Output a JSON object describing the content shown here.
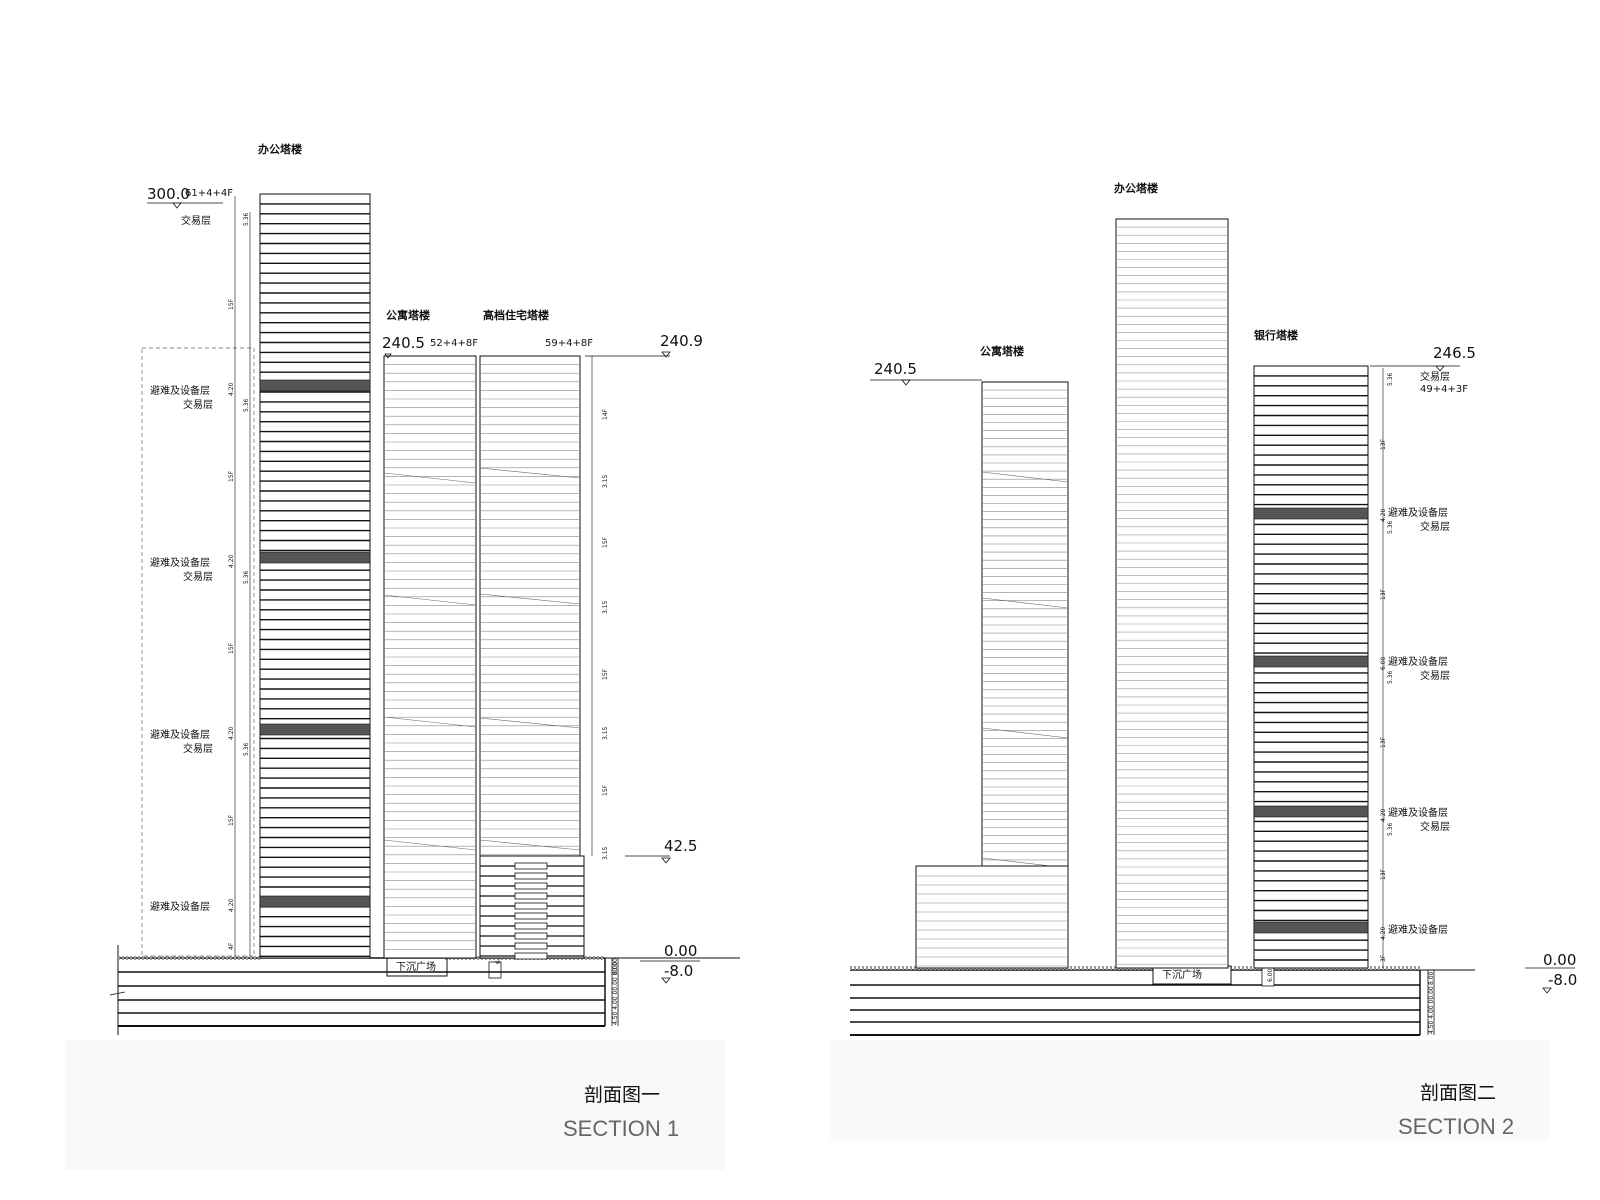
{
  "section1": {
    "office": {
      "label": "办公塔楼",
      "elev": "300.0",
      "floors": "61+4+4F",
      "top_note": "交易层"
    },
    "apartment": {
      "label": "公寓塔楼",
      "elev": "240.5",
      "floors": "52+4+8F"
    },
    "residential": {
      "label": "高档住宅塔楼",
      "floors": "59+4+8F"
    },
    "right_elev": "240.9",
    "podium_elev": "42.5",
    "zero_elev": "0.00",
    "minus_elev": "-8.0",
    "plaza": "下沉广场",
    "refuge": "避难及设备层",
    "trade": "交易层",
    "dims": {
      "d536": "5.36",
      "d420": "4.20",
      "f15": "15F",
      "f14": "14F",
      "d315": "3.15",
      "f4": "4F",
      "d600": "6.00",
      "d800": "8.00",
      "base": "4.50 4.00 00.00 00.00"
    },
    "caption_cn": "剖面图一",
    "caption_en": "SECTION 1"
  },
  "section2": {
    "office": {
      "label": "办公塔楼"
    },
    "apartment": {
      "label": "公寓塔楼",
      "elev": "240.5"
    },
    "bank": {
      "label": "银行塔楼",
      "elev": "246.5",
      "floors": "49+4+3F"
    },
    "zero_elev": "0.00",
    "minus_elev": "-8.0",
    "plaza": "下沉广场",
    "refuge": "避难及设备层",
    "trade": "交易层",
    "dims": {
      "d536": "5.36",
      "d420": "4.20",
      "d600": "6.00",
      "f13": "13F",
      "f3": "3F",
      "d800": "8.00",
      "base": "4.50 4.00 00.00"
    },
    "caption_cn": "剖面图二",
    "caption_en": "SECTION 2"
  },
  "colors": {
    "line": "#111111",
    "band": "#555555",
    "light": "#888888"
  }
}
